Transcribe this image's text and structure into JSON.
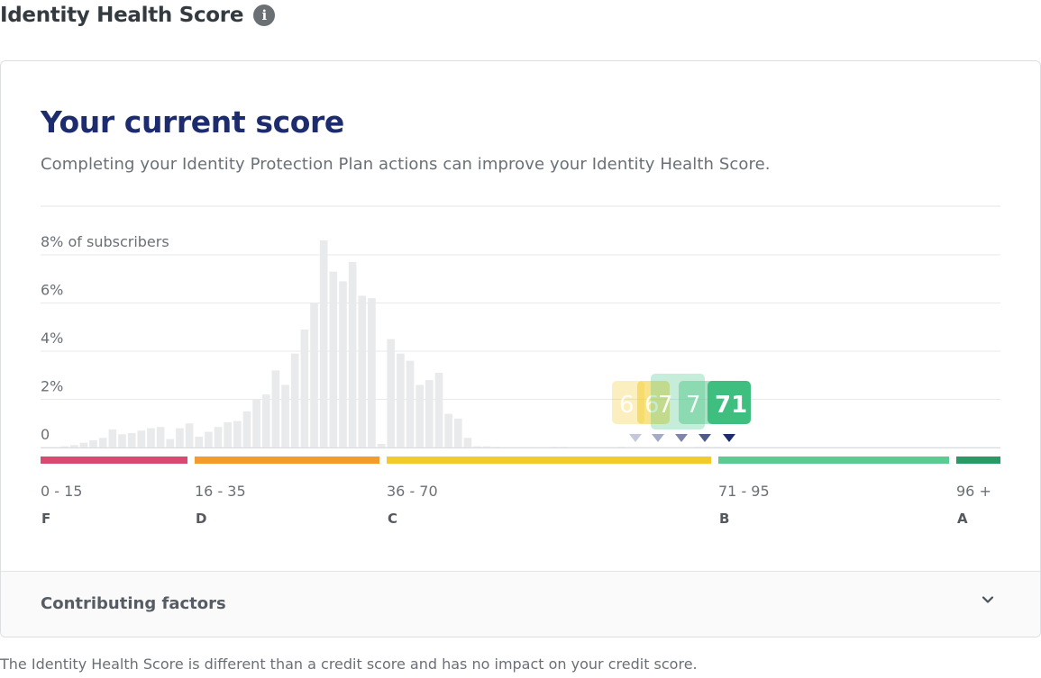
{
  "page": {
    "title": "Identity Health Score",
    "info_icon": "info-icon",
    "disclaimer": "The Identity Health Score is different than a credit score and has no impact on your credit score."
  },
  "card": {
    "heading": "Your current score",
    "subtitle": "Completing your Identity Protection Plan actions can improve your Identity Health Score.",
    "footer_label": "Contributing factors",
    "footer_icon": "chevron-down-icon"
  },
  "colors": {
    "heading": "#1c2c6e",
    "band_f": "#d94a72",
    "band_d": "#f39b2b",
    "band_c": "#f2cb2a",
    "band_b": "#5ccb91",
    "band_a": "#279a65",
    "histogram_bar": "#e9eaeb",
    "marker_dark": "#1c2c6e"
  },
  "chart_data": {
    "type": "bar",
    "ylabel": "% of subscribers",
    "y_ticks": [
      {
        "value": 8,
        "label": "8% of subscribers"
      },
      {
        "value": 6,
        "label": "6%"
      },
      {
        "value": 4,
        "label": "4%"
      },
      {
        "value": 2,
        "label": "2%"
      },
      {
        "value": 0,
        "label": "0"
      }
    ],
    "ylim": [
      0,
      8.5
    ],
    "xlim": [
      0,
      100
    ],
    "histogram": [
      {
        "score": 0,
        "pct": 0
      },
      {
        "score": 1,
        "pct": 0
      },
      {
        "score": 2,
        "pct": 0.05
      },
      {
        "score": 3,
        "pct": 0.1
      },
      {
        "score": 4,
        "pct": 0.2
      },
      {
        "score": 5,
        "pct": 0.3
      },
      {
        "score": 6,
        "pct": 0.4
      },
      {
        "score": 7,
        "pct": 0.75
      },
      {
        "score": 8,
        "pct": 0.55
      },
      {
        "score": 9,
        "pct": 0.6
      },
      {
        "score": 10,
        "pct": 0.7
      },
      {
        "score": 11,
        "pct": 0.8
      },
      {
        "score": 12,
        "pct": 0.85
      },
      {
        "score": 13,
        "pct": 0.35
      },
      {
        "score": 14,
        "pct": 0.8
      },
      {
        "score": 15,
        "pct": 1.0
      },
      {
        "score": 16,
        "pct": 0.45
      },
      {
        "score": 17,
        "pct": 0.65
      },
      {
        "score": 18,
        "pct": 0.85
      },
      {
        "score": 19,
        "pct": 1.05
      },
      {
        "score": 20,
        "pct": 1.1
      },
      {
        "score": 21,
        "pct": 1.5
      },
      {
        "score": 22,
        "pct": 2.0
      },
      {
        "score": 23,
        "pct": 2.2
      },
      {
        "score": 24,
        "pct": 3.2
      },
      {
        "score": 25,
        "pct": 2.6
      },
      {
        "score": 26,
        "pct": 3.9
      },
      {
        "score": 27,
        "pct": 4.9
      },
      {
        "score": 28,
        "pct": 6.0
      },
      {
        "score": 29,
        "pct": 8.6
      },
      {
        "score": 30,
        "pct": 7.3
      },
      {
        "score": 31,
        "pct": 6.9
      },
      {
        "score": 32,
        "pct": 7.7
      },
      {
        "score": 33,
        "pct": 6.3
      },
      {
        "score": 34,
        "pct": 6.2
      },
      {
        "score": 35,
        "pct": 0.15
      },
      {
        "score": 36,
        "pct": 4.5
      },
      {
        "score": 37,
        "pct": 3.9
      },
      {
        "score": 38,
        "pct": 3.6
      },
      {
        "score": 39,
        "pct": 2.6
      },
      {
        "score": 40,
        "pct": 2.8
      },
      {
        "score": 41,
        "pct": 3.1
      },
      {
        "score": 42,
        "pct": 1.4
      },
      {
        "score": 43,
        "pct": 1.2
      },
      {
        "score": 44,
        "pct": 0.4
      },
      {
        "score": 45,
        "pct": 0.05
      },
      {
        "score": 46,
        "pct": 0.05
      },
      {
        "score": 47,
        "pct": 0.03
      },
      {
        "score": 48,
        "pct": 0.02
      },
      {
        "score": 49,
        "pct": 0.02
      },
      {
        "score": 50,
        "pct": 0.02
      },
      {
        "score": 51,
        "pct": 0.02
      },
      {
        "score": 52,
        "pct": 0.02
      },
      {
        "score": 53,
        "pct": 0.03
      },
      {
        "score": 54,
        "pct": 0.03
      },
      {
        "score": 55,
        "pct": 0.02
      },
      {
        "score": 56,
        "pct": 0.02
      },
      {
        "score": 57,
        "pct": 0.02
      },
      {
        "score": 58,
        "pct": 0.02
      },
      {
        "score": 59,
        "pct": 0.02
      },
      {
        "score": 60,
        "pct": 0.03
      },
      {
        "score": 61,
        "pct": 0.02
      },
      {
        "score": 62,
        "pct": 0.02
      },
      {
        "score": 63,
        "pct": 0.02
      },
      {
        "score": 64,
        "pct": 0.02
      },
      {
        "score": 65,
        "pct": 0.02
      },
      {
        "score": 66,
        "pct": 0.02
      },
      {
        "score": 67,
        "pct": 0.02
      },
      {
        "score": 68,
        "pct": 0.03
      },
      {
        "score": 69,
        "pct": 0.03
      },
      {
        "score": 70,
        "pct": 0.03
      },
      {
        "score": 71,
        "pct": 0.02
      },
      {
        "score": 72,
        "pct": 0.02
      }
    ],
    "bands": [
      {
        "range": "0 - 15",
        "grade": "F",
        "min": 0,
        "max": 15,
        "color": "#d94a72"
      },
      {
        "range": "16 - 35",
        "grade": "D",
        "min": 16,
        "max": 35,
        "color": "#f39b2b"
      },
      {
        "range": "36 - 70",
        "grade": "C",
        "min": 36,
        "max": 70,
        "color": "#f2cb2a"
      },
      {
        "range": "71 - 95",
        "grade": "B",
        "min": 71,
        "max": 95,
        "color": "#5ccb91"
      },
      {
        "range": "96 +",
        "grade": "A",
        "min": 96,
        "max": 100,
        "color": "#279a65"
      }
    ],
    "score_history": [
      {
        "label": "6",
        "score": 62,
        "color": "#f2cb2a",
        "opacity": 0.3
      },
      {
        "label": "6",
        "score": 64,
        "color": "#f2cb2a",
        "opacity": 0.55
      },
      {
        "label": "7",
        "score": 67,
        "color": "#5ccb91",
        "opacity": 0.35
      },
      {
        "label": "7",
        "score": 69,
        "color": "#5ccb91",
        "opacity": 0.55
      },
      {
        "label": "71",
        "score": 71,
        "color": "#3fbf7f",
        "opacity": 1.0
      }
    ],
    "current_score": 71
  }
}
